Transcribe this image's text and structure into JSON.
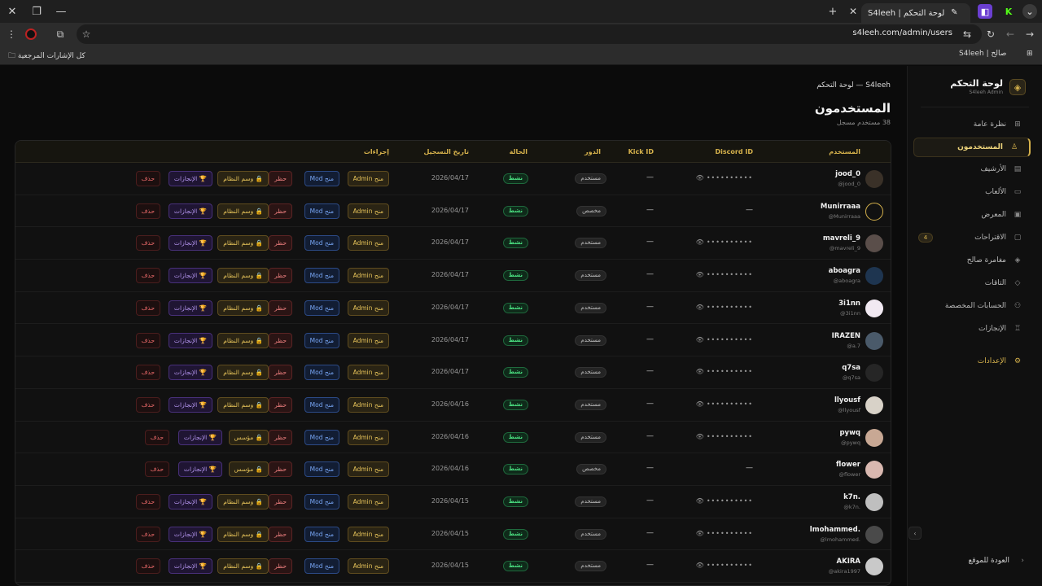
{
  "browser": {
    "tab_title": "لوحة التحكم | S4leeh",
    "url": "s4leeh.com/admin/users",
    "bookmarks_all": "كل الإشارات المرجعية",
    "bookmark_1": "صالح | S4leeh"
  },
  "sidebar": {
    "brand_title": "لوحة التحكم",
    "brand_sub": "S4leeh Admin",
    "items": [
      {
        "label": "نظرة عامة",
        "icon": "grid-icon"
      },
      {
        "label": "المستخدمون",
        "icon": "user-icon",
        "active": true
      },
      {
        "label": "الأرشيف",
        "icon": "archive-icon"
      },
      {
        "label": "الألعاب",
        "icon": "gamepad-icon"
      },
      {
        "label": "المعرض",
        "icon": "image-icon"
      },
      {
        "label": "الاقتراحات",
        "icon": "message-icon",
        "badge": "4"
      },
      {
        "label": "مغامرة صالح",
        "icon": "layers-icon"
      },
      {
        "label": "التاقات",
        "icon": "tag-icon"
      },
      {
        "label": "الحسابات المخصصة",
        "icon": "users-icon"
      },
      {
        "label": "الإنجازات",
        "icon": "award-icon"
      },
      {
        "label": "الإعدادات",
        "icon": "gear-icon"
      }
    ],
    "back_label": "العودة للموقع"
  },
  "header": {
    "breadcrumb": "S4leeh — لوحة التحكم",
    "title": "المستخدمون",
    "subtitle": "38 مستخدم مسجل"
  },
  "table": {
    "columns": {
      "user": "المستخدم",
      "discord": "Discord ID",
      "kick": "Kick ID",
      "role": "الدور",
      "status": "الحالة",
      "date": "تاريخ التسجيل",
      "actions": "إجراءات"
    },
    "masked": "••••••••••",
    "dash": "—",
    "actions": {
      "admin": "منح Admin",
      "mod": "منح Mod",
      "ban": "حظر",
      "badge_system": "🔒 وسم النظام",
      "badge_founder": "🔒 مؤسس",
      "achievements": "🏆 الإنجازات",
      "delete": "حذف"
    },
    "rows": [
      {
        "name": "jood_0",
        "handle": "@jood_0",
        "role": "مستخدم",
        "status": "نشط",
        "date": "2026/04/17",
        "discord_masked": true,
        "badge": "system",
        "avatar_color": "#3a3128"
      },
      {
        "name": "Munirraaa",
        "handle": "@Munirraaa",
        "role": "مخصص",
        "status": "نشط",
        "date": "2026/04/17",
        "discord_masked": false,
        "badge": "system",
        "avatar_color": "outline"
      },
      {
        "name": "mavreli_9",
        "handle": "@mavreli_9",
        "role": "مستخدم",
        "status": "نشط",
        "date": "2026/04/17",
        "discord_masked": true,
        "badge": "system",
        "avatar_color": "#5a4e4a"
      },
      {
        "name": "aboagra",
        "handle": "@aboagra",
        "role": "مستخدم",
        "status": "نشط",
        "date": "2026/04/17",
        "discord_masked": true,
        "badge": "system",
        "avatar_color": "#1e3550"
      },
      {
        "name": "3i1nn",
        "handle": "@3i1nn",
        "role": "مستخدم",
        "status": "نشط",
        "date": "2026/04/17",
        "discord_masked": true,
        "badge": "system",
        "avatar_color": "#f1e9f2"
      },
      {
        "name": "IRAZEN",
        "handle": "@a.7",
        "role": "مستخدم",
        "status": "نشط",
        "date": "2026/04/17",
        "discord_masked": true,
        "badge": "system",
        "avatar_color": "#4a5a6a"
      },
      {
        "name": "q7sa",
        "handle": "@q7sa",
        "role": "مستخدم",
        "status": "نشط",
        "date": "2026/04/17",
        "discord_masked": true,
        "badge": "system",
        "avatar_color": "#262626"
      },
      {
        "name": "llyousf",
        "handle": "@llyousf",
        "role": "مستخدم",
        "status": "نشط",
        "date": "2026/04/16",
        "discord_masked": true,
        "badge": "system",
        "avatar_color": "#d8d2c8"
      },
      {
        "name": "pywq",
        "handle": "@pywq",
        "role": "مستخدم",
        "status": "نشط",
        "date": "2026/04/16",
        "discord_masked": true,
        "badge": "founder",
        "avatar_color": "#c8a894"
      },
      {
        "name": "flower",
        "handle": "@flower",
        "role": "مخصص",
        "status": "نشط",
        "date": "2026/04/16",
        "discord_masked": false,
        "badge": "founder",
        "avatar_color": "#d9b8b0"
      },
      {
        "name": "k7n.",
        "handle": "@k7n.",
        "role": "مستخدم",
        "status": "نشط",
        "date": "2026/04/15",
        "discord_masked": true,
        "badge": "system",
        "avatar_color": "#bfbfbf"
      },
      {
        "name": "lmohammed.",
        "handle": "@lmohammed.",
        "role": "مستخدم",
        "status": "نشط",
        "date": "2026/04/15",
        "discord_masked": true,
        "badge": "system",
        "avatar_color": "#4a4a4a"
      },
      {
        "name": "AKIRA",
        "handle": "@akira1997",
        "role": "مستخدم",
        "status": "نشط",
        "date": "2026/04/15",
        "discord_masked": true,
        "badge": "system",
        "avatar_color": "#c9c9c9"
      }
    ]
  }
}
